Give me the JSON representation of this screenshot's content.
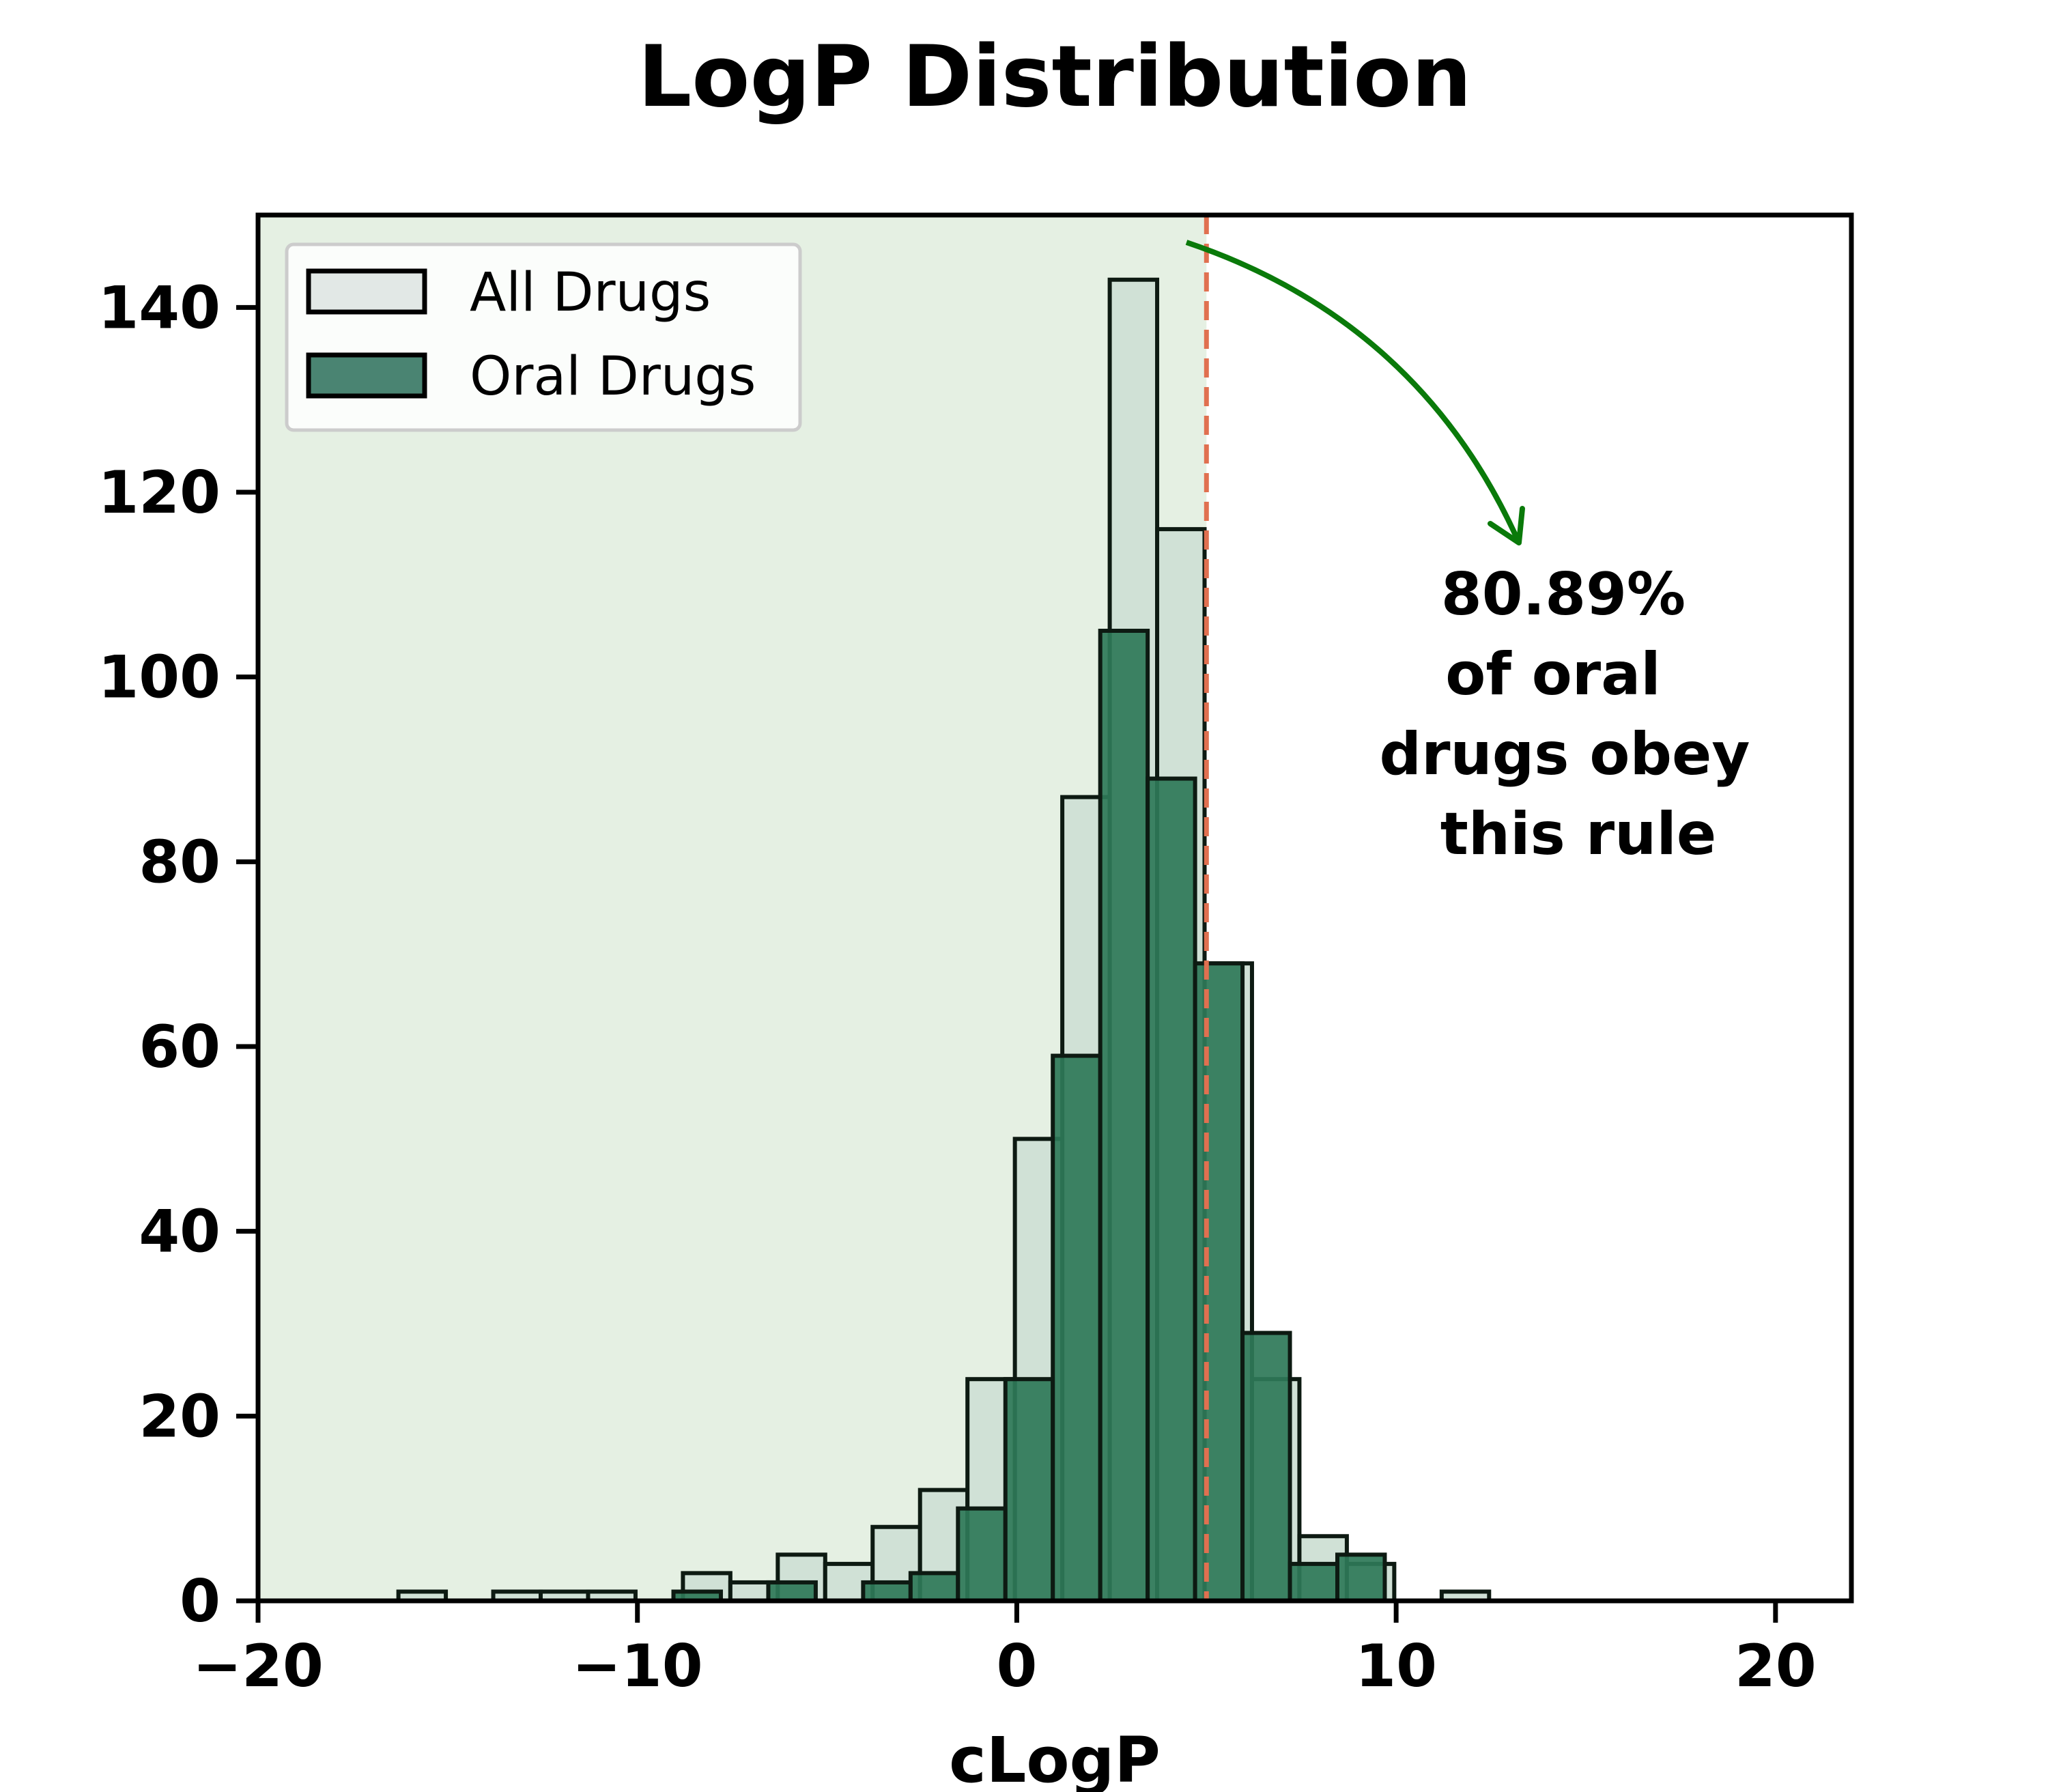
{
  "chart_data": {
    "type": "bar",
    "title": "LogP Distribution",
    "xlabel": "cLogP",
    "ylabel": "",
    "xlim": [
      -20,
      22
    ],
    "ylim": [
      0,
      150
    ],
    "xticks": [
      -20,
      -10,
      0,
      10,
      20
    ],
    "xtick_labels": [
      "−20",
      "−10",
      "0",
      "10",
      "20"
    ],
    "yticks": [
      0,
      20,
      40,
      60,
      80,
      100,
      120,
      140
    ],
    "ytick_labels": [
      "0",
      "20",
      "40",
      "60",
      "80",
      "100",
      "120",
      "140"
    ],
    "threshold": {
      "x": 5,
      "color": "#e07050",
      "style": "dashed"
    },
    "shaded_region": {
      "x_end": 5,
      "color": "#e5f0e3"
    },
    "legend_position": "upper-left",
    "series": [
      {
        "name": "All Drugs",
        "fill": "#d0e1d6",
        "legend_fill": "#e2e8e6",
        "bins": [
          {
            "x0": -16.3,
            "x1": -15.05,
            "count": 1
          },
          {
            "x0": -13.8,
            "x1": -12.55,
            "count": 1
          },
          {
            "x0": -12.55,
            "x1": -11.3,
            "count": 1
          },
          {
            "x0": -11.3,
            "x1": -10.05,
            "count": 1
          },
          {
            "x0": -8.8,
            "x1": -7.55,
            "count": 3
          },
          {
            "x0": -7.55,
            "x1": -6.3,
            "count": 2
          },
          {
            "x0": -6.3,
            "x1": -5.05,
            "count": 5
          },
          {
            "x0": -5.05,
            "x1": -3.8,
            "count": 4
          },
          {
            "x0": -3.8,
            "x1": -2.55,
            "count": 8
          },
          {
            "x0": -2.55,
            "x1": -1.3,
            "count": 12
          },
          {
            "x0": -1.3,
            "x1": -0.05,
            "count": 24
          },
          {
            "x0": -0.05,
            "x1": 1.2,
            "count": 50
          },
          {
            "x0": 1.2,
            "x1": 2.45,
            "count": 87
          },
          {
            "x0": 2.45,
            "x1": 3.7,
            "count": 143
          },
          {
            "x0": 3.7,
            "x1": 4.95,
            "count": 116
          },
          {
            "x0": 4.95,
            "x1": 6.2,
            "count": 69
          },
          {
            "x0": 6.2,
            "x1": 7.45,
            "count": 24
          },
          {
            "x0": 7.45,
            "x1": 8.7,
            "count": 7
          },
          {
            "x0": 8.7,
            "x1": 9.95,
            "count": 4
          },
          {
            "x0": 11.2,
            "x1": 12.45,
            "count": 1
          }
        ]
      },
      {
        "name": "Oral Drugs",
        "fill": "#2e7858",
        "legend_fill": "#4a8472",
        "bins": [
          {
            "x0": -9.05,
            "x1": -7.8,
            "count": 1
          },
          {
            "x0": -6.55,
            "x1": -5.3,
            "count": 2
          },
          {
            "x0": -4.05,
            "x1": -2.8,
            "count": 2
          },
          {
            "x0": -2.8,
            "x1": -1.55,
            "count": 3
          },
          {
            "x0": -1.55,
            "x1": -0.3,
            "count": 10
          },
          {
            "x0": -0.3,
            "x1": 0.95,
            "count": 24
          },
          {
            "x0": 0.95,
            "x1": 2.2,
            "count": 59
          },
          {
            "x0": 2.2,
            "x1": 3.45,
            "count": 105
          },
          {
            "x0": 3.45,
            "x1": 4.7,
            "count": 89
          },
          {
            "x0": 4.7,
            "x1": 5.95,
            "count": 69
          },
          {
            "x0": 5.95,
            "x1": 7.2,
            "count": 29
          },
          {
            "x0": 7.2,
            "x1": 8.45,
            "count": 4
          },
          {
            "x0": 8.45,
            "x1": 9.7,
            "count": 5
          }
        ]
      }
    ],
    "annotation": {
      "lines": [
        "80.89%",
        "of oral",
        "drugs obey",
        "this rule"
      ],
      "arrow_color": "#0a7a0a"
    }
  }
}
